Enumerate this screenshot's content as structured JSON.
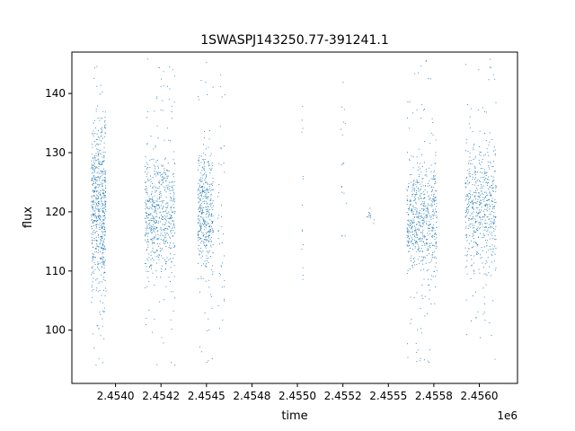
{
  "chart_data": {
    "type": "scatter",
    "title": "1SWASPJ143250.77-391241.1",
    "xlabel": "time",
    "ylabel": "flux",
    "x_offset_label": "1e6",
    "xlim": [
      2453760,
      2456210
    ],
    "ylim": [
      91,
      147
    ],
    "x_ticks": [
      {
        "value": 2454000,
        "label": "2.4540"
      },
      {
        "value": 2454250,
        "label": "2.4542"
      },
      {
        "value": 2454500,
        "label": "2.4545"
      },
      {
        "value": 2454750,
        "label": "2.4548"
      },
      {
        "value": 2455000,
        "label": "2.4550"
      },
      {
        "value": 2455250,
        "label": "2.4552"
      },
      {
        "value": 2455500,
        "label": "2.4555"
      },
      {
        "value": 2455750,
        "label": "2.4558"
      },
      {
        "value": 2456000,
        "label": "2.4560"
      }
    ],
    "y_ticks": [
      {
        "value": 100,
        "label": "100"
      },
      {
        "value": 110,
        "label": "110"
      },
      {
        "value": 120,
        "label": "120"
      },
      {
        "value": 130,
        "label": "130"
      },
      {
        "value": 140,
        "label": "140"
      }
    ],
    "grid": false,
    "marker_color": "#1f77b4",
    "series": [
      {
        "clusters": [
          {
            "x_range": [
              2453865,
              2453945
            ],
            "center": 121,
            "spread": 7,
            "min": 94,
            "max": 146,
            "count": 620
          },
          {
            "x_range": [
              2454160,
              2454325
            ],
            "center": 120,
            "spread": 5,
            "min": 94,
            "max": 146,
            "count": 620
          },
          {
            "x_range": [
              2454450,
              2454535
            ],
            "center": 120,
            "spread": 5,
            "min": 94,
            "max": 146,
            "count": 420
          },
          {
            "x_range": [
              2454560,
              2454600
            ],
            "center": 118,
            "spread": 8,
            "min": 95,
            "max": 144,
            "count": 40
          },
          {
            "x_range": [
              2455020,
              2455030
            ],
            "center": 122,
            "spread": 10,
            "min": 107,
            "max": 138,
            "count": 14
          },
          {
            "x_range": [
              2455235,
              2455270
            ],
            "center": 125,
            "spread": 9,
            "min": 116,
            "max": 142,
            "count": 18
          },
          {
            "x_range": [
              2455380,
              2455420
            ],
            "center": 119,
            "spread": 1,
            "min": 118,
            "max": 121,
            "count": 12
          },
          {
            "x_range": [
              2455600,
              2455765
            ],
            "center": 119,
            "spread": 5,
            "min": 94,
            "max": 146,
            "count": 620
          },
          {
            "x_range": [
              2455920,
              2456090
            ],
            "center": 121,
            "spread": 5,
            "min": 95,
            "max": 146,
            "count": 560
          }
        ]
      }
    ]
  }
}
